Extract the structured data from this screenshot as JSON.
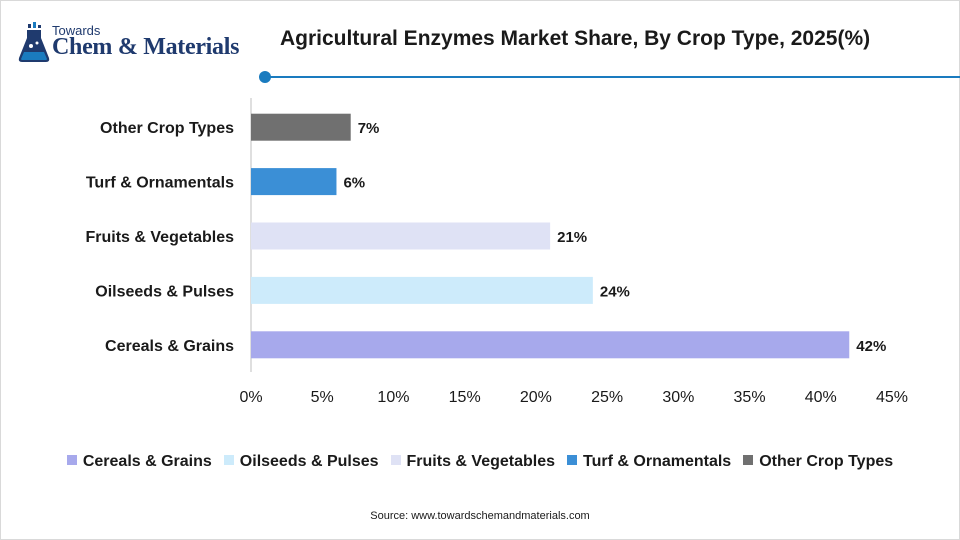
{
  "logo": {
    "towards": "Towards",
    "main": "Chem & Materials"
  },
  "title": "Agricultural Enzymes Market Share, By Crop Type, 2025(%)",
  "source": "Source: www.towardschemandmaterials.com",
  "chart_data": {
    "type": "bar",
    "orientation": "horizontal",
    "title": "Agricultural Enzymes Market Share, By Crop Type, 2025(%)",
    "categories": [
      "Cereals & Grains",
      "Oilseeds & Pulses",
      "Fruits & Vegetables",
      "Turf & Ornamentals",
      "Other Crop Types"
    ],
    "values": [
      42,
      24,
      21,
      6,
      7
    ],
    "value_labels": [
      "42%",
      "24%",
      "21%",
      "6%",
      "7%"
    ],
    "colors": [
      "#a7a9ec",
      "#cdebfb",
      "#dfe2f5",
      "#3b8fd6",
      "#707070"
    ],
    "xlim": [
      0,
      45
    ],
    "xticks": [
      0,
      5,
      10,
      15,
      20,
      25,
      30,
      35,
      40,
      45
    ],
    "xtick_labels": [
      "0%",
      "5%",
      "10%",
      "15%",
      "20%",
      "25%",
      "30%",
      "35%",
      "40%",
      "45%"
    ],
    "grid": false,
    "legend_position": "bottom"
  }
}
